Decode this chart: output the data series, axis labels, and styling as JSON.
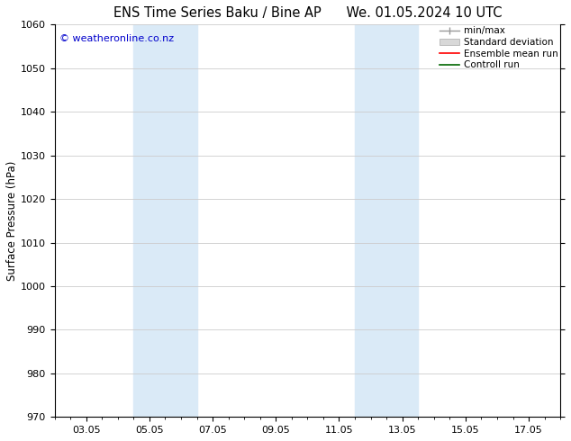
{
  "title_left": "ENS Time Series Baku / Bine AP",
  "title_right": "We. 01.05.2024 10 UTC",
  "ylabel": "Surface Pressure (hPa)",
  "ylim": [
    970,
    1060
  ],
  "yticks": [
    970,
    980,
    990,
    1000,
    1010,
    1020,
    1030,
    1040,
    1050,
    1060
  ],
  "xtick_labels": [
    "03.05",
    "05.05",
    "07.05",
    "09.05",
    "11.05",
    "13.05",
    "15.05",
    "17.05"
  ],
  "xtick_positions": [
    2,
    4,
    6,
    8,
    10,
    12,
    14,
    16
  ],
  "xlim": [
    1,
    17
  ],
  "shaded_bands": [
    {
      "x_start": 3.5,
      "x_end": 5.5,
      "color": "#daeaf7"
    },
    {
      "x_start": 10.5,
      "x_end": 12.5,
      "color": "#daeaf7"
    }
  ],
  "watermark": "© weatheronline.co.nz",
  "watermark_color": "#0000cc",
  "bg_color": "#ffffff",
  "plot_bg_color": "#ffffff",
  "grid_color": "#cccccc",
  "title_fontsize": 10.5,
  "axis_label_fontsize": 8.5,
  "tick_fontsize": 8,
  "legend_fontsize": 7.5,
  "watermark_fontsize": 8
}
